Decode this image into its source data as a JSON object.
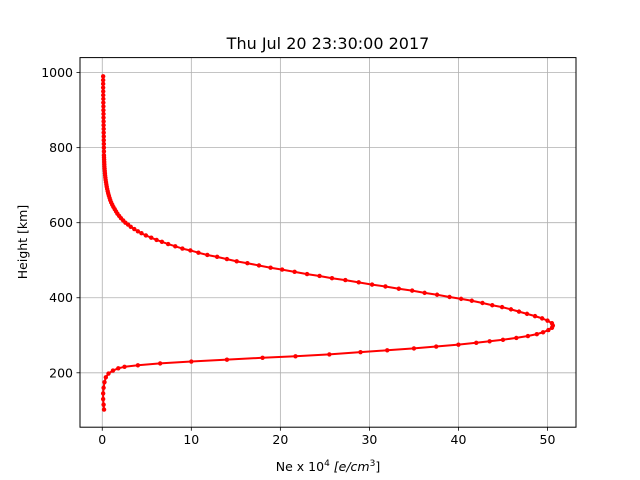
{
  "chart_data": {
    "type": "line",
    "title": "Thu Jul 20 23:30:00 2017",
    "xlabel": "Ne x 10",
    "xlabel_sup": "4",
    "xlabel_unit_open": " [e/cm",
    "xlabel_unit_sup": "3",
    "xlabel_unit_close": "]",
    "ylabel": "Height [km]",
    "xlim": [
      -2.5,
      53.2
    ],
    "ylim": [
      55,
      1040
    ],
    "xticks": [
      0,
      10,
      20,
      30,
      40,
      50
    ],
    "yticks": [
      200,
      400,
      600,
      800,
      1000
    ],
    "grid": true,
    "series": [
      {
        "color": "#ff0000",
        "marker": "point",
        "points": [
          [
            0.2,
            102
          ],
          [
            0.15,
            115
          ],
          [
            0.1,
            130
          ],
          [
            0.1,
            145
          ],
          [
            0.15,
            160
          ],
          [
            0.25,
            175
          ],
          [
            0.4,
            188
          ],
          [
            0.7,
            198
          ],
          [
            1.2,
            206
          ],
          [
            1.8,
            212
          ],
          [
            2.5,
            216
          ],
          [
            4.0,
            220
          ],
          [
            6.5,
            225
          ],
          [
            10.0,
            230
          ],
          [
            14.0,
            235
          ],
          [
            18.0,
            240
          ],
          [
            21.7,
            244
          ],
          [
            25.5,
            249
          ],
          [
            29.0,
            255
          ],
          [
            32.0,
            260
          ],
          [
            35.0,
            265
          ],
          [
            37.5,
            270
          ],
          [
            40.0,
            275
          ],
          [
            42.0,
            280
          ],
          [
            43.5,
            284
          ],
          [
            45.0,
            288
          ],
          [
            46.5,
            293
          ],
          [
            47.8,
            298
          ],
          [
            48.8,
            303
          ],
          [
            49.5,
            308
          ],
          [
            50.1,
            314
          ],
          [
            50.5,
            320
          ],
          [
            50.6,
            326
          ],
          [
            50.5,
            332
          ],
          [
            50.0,
            339
          ],
          [
            49.4,
            345
          ],
          [
            48.6,
            351
          ],
          [
            47.7,
            357
          ],
          [
            46.8,
            363
          ],
          [
            45.9,
            369
          ],
          [
            44.9,
            375
          ],
          [
            43.8,
            380
          ],
          [
            42.7,
            386
          ],
          [
            41.5,
            392
          ],
          [
            40.3,
            397
          ],
          [
            39.0,
            402
          ],
          [
            37.6,
            408
          ],
          [
            36.2,
            413
          ],
          [
            34.8,
            419
          ],
          [
            33.3,
            424
          ],
          [
            31.8,
            430
          ],
          [
            30.3,
            435
          ],
          [
            28.8,
            441
          ],
          [
            27.3,
            447
          ],
          [
            25.8,
            452
          ],
          [
            24.4,
            458
          ],
          [
            23.0,
            463
          ],
          [
            21.6,
            469
          ],
          [
            20.2,
            475
          ],
          [
            18.9,
            480
          ],
          [
            17.6,
            486
          ],
          [
            16.3,
            492
          ],
          [
            15.1,
            497
          ],
          [
            14.0,
            503
          ],
          [
            12.9,
            509
          ],
          [
            11.8,
            514
          ],
          [
            10.8,
            520
          ],
          [
            9.9,
            526
          ],
          [
            9.0,
            531
          ],
          [
            8.2,
            537
          ],
          [
            7.4,
            543
          ],
          [
            6.7,
            549
          ],
          [
            6.1,
            554
          ],
          [
            5.5,
            560
          ],
          [
            4.9,
            566
          ],
          [
            4.4,
            572
          ],
          [
            4.0,
            577
          ],
          [
            3.6,
            583
          ],
          [
            3.2,
            589
          ],
          [
            2.9,
            595
          ],
          [
            2.6,
            600
          ],
          [
            2.35,
            606
          ],
          [
            2.1,
            612
          ],
          [
            1.9,
            618
          ],
          [
            1.7,
            624
          ],
          [
            1.55,
            630
          ],
          [
            1.4,
            636
          ],
          [
            1.25,
            642
          ],
          [
            1.12,
            648
          ],
          [
            1.0,
            654
          ],
          [
            0.9,
            660
          ],
          [
            0.82,
            666
          ],
          [
            0.74,
            672
          ],
          [
            0.67,
            678
          ],
          [
            0.61,
            684
          ],
          [
            0.55,
            690
          ],
          [
            0.5,
            696
          ],
          [
            0.46,
            702
          ],
          [
            0.42,
            708
          ],
          [
            0.38,
            714
          ],
          [
            0.35,
            720
          ],
          [
            0.32,
            726
          ],
          [
            0.3,
            732
          ],
          [
            0.28,
            738
          ],
          [
            0.26,
            744
          ],
          [
            0.24,
            750
          ],
          [
            0.23,
            756
          ],
          [
            0.22,
            762
          ],
          [
            0.21,
            768
          ],
          [
            0.2,
            774
          ],
          [
            0.19,
            780
          ],
          [
            0.19,
            790
          ],
          [
            0.18,
            800
          ],
          [
            0.18,
            810
          ],
          [
            0.17,
            820
          ],
          [
            0.17,
            830
          ],
          [
            0.16,
            840
          ],
          [
            0.16,
            850
          ],
          [
            0.15,
            860
          ],
          [
            0.15,
            870
          ],
          [
            0.14,
            880
          ],
          [
            0.14,
            890
          ],
          [
            0.13,
            900
          ],
          [
            0.13,
            910
          ],
          [
            0.12,
            920
          ],
          [
            0.12,
            930
          ],
          [
            0.11,
            940
          ],
          [
            0.11,
            950
          ],
          [
            0.1,
            960
          ],
          [
            0.1,
            970
          ],
          [
            0.1,
            980
          ],
          [
            0.1,
            990
          ]
        ]
      }
    ]
  }
}
